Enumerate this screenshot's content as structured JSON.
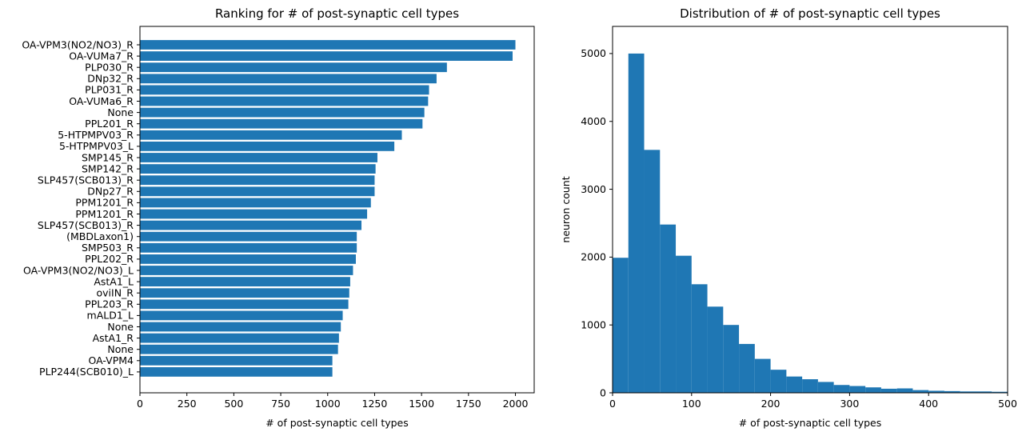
{
  "chart_data": [
    {
      "type": "bar",
      "orientation": "horizontal",
      "title": "Ranking for # of post-synaptic cell types",
      "xlabel": "# of post-synaptic cell types",
      "ylabel": "",
      "xlim": [
        0,
        2100
      ],
      "xticks": [
        0,
        250,
        500,
        750,
        1000,
        1250,
        1500,
        1750,
        2000
      ],
      "color": "#1f77b4",
      "categories": [
        "OA-VPM3(NO2/NO3)_R",
        "OA-VUMa7_R",
        "PLP030_R",
        "DNp32_R",
        "PLP031_R",
        "OA-VUMa6_R",
        "None",
        "PPL201_R",
        "5-HTPMPV03_R",
        "5-HTPMPV03_L",
        "SMP145_R",
        "SMP142_R",
        "SLP457(SCB013)_R",
        "DNp27_R",
        "PPM1201_R",
        "PPM1201_R",
        "SLP457(SCB013)_R",
        "(MBDLaxon1)",
        "SMP503_R",
        "PPL202_R",
        "OA-VPM3(NO2/NO3)_L",
        "AstA1_L",
        "oviIN_R",
        "PPL203_R",
        "mALD1_L",
        "None",
        "AstA1_R",
        "None",
        "OA-VPM4",
        "PLP244(SCB010)_L"
      ],
      "values": [
        2000,
        1985,
        1635,
        1580,
        1540,
        1535,
        1515,
        1505,
        1395,
        1355,
        1265,
        1255,
        1250,
        1250,
        1230,
        1210,
        1180,
        1155,
        1155,
        1150,
        1135,
        1120,
        1115,
        1110,
        1080,
        1070,
        1060,
        1055,
        1025,
        1025
      ]
    },
    {
      "type": "histogram",
      "title": "Distribution of # of post-synaptic cell types",
      "xlabel": "# of post-synaptic cell types",
      "ylabel": "neuron count",
      "xlim": [
        0,
        500
      ],
      "ylim": [
        0,
        5400
      ],
      "xticks": [
        0,
        100,
        200,
        300,
        400,
        500
      ],
      "yticks": [
        0,
        1000,
        2000,
        3000,
        4000,
        5000
      ],
      "color": "#1f77b4",
      "bin_width": 20,
      "bin_starts": [
        0,
        20,
        40,
        60,
        80,
        100,
        120,
        140,
        160,
        180,
        200,
        220,
        240,
        260,
        280,
        300,
        320,
        340,
        360,
        380,
        400,
        420,
        440,
        460,
        480
      ],
      "counts": [
        1990,
        5000,
        3580,
        2480,
        2020,
        1600,
        1270,
        1000,
        720,
        500,
        340,
        240,
        200,
        160,
        115,
        100,
        80,
        60,
        65,
        40,
        30,
        25,
        20,
        20,
        15
      ]
    }
  ]
}
